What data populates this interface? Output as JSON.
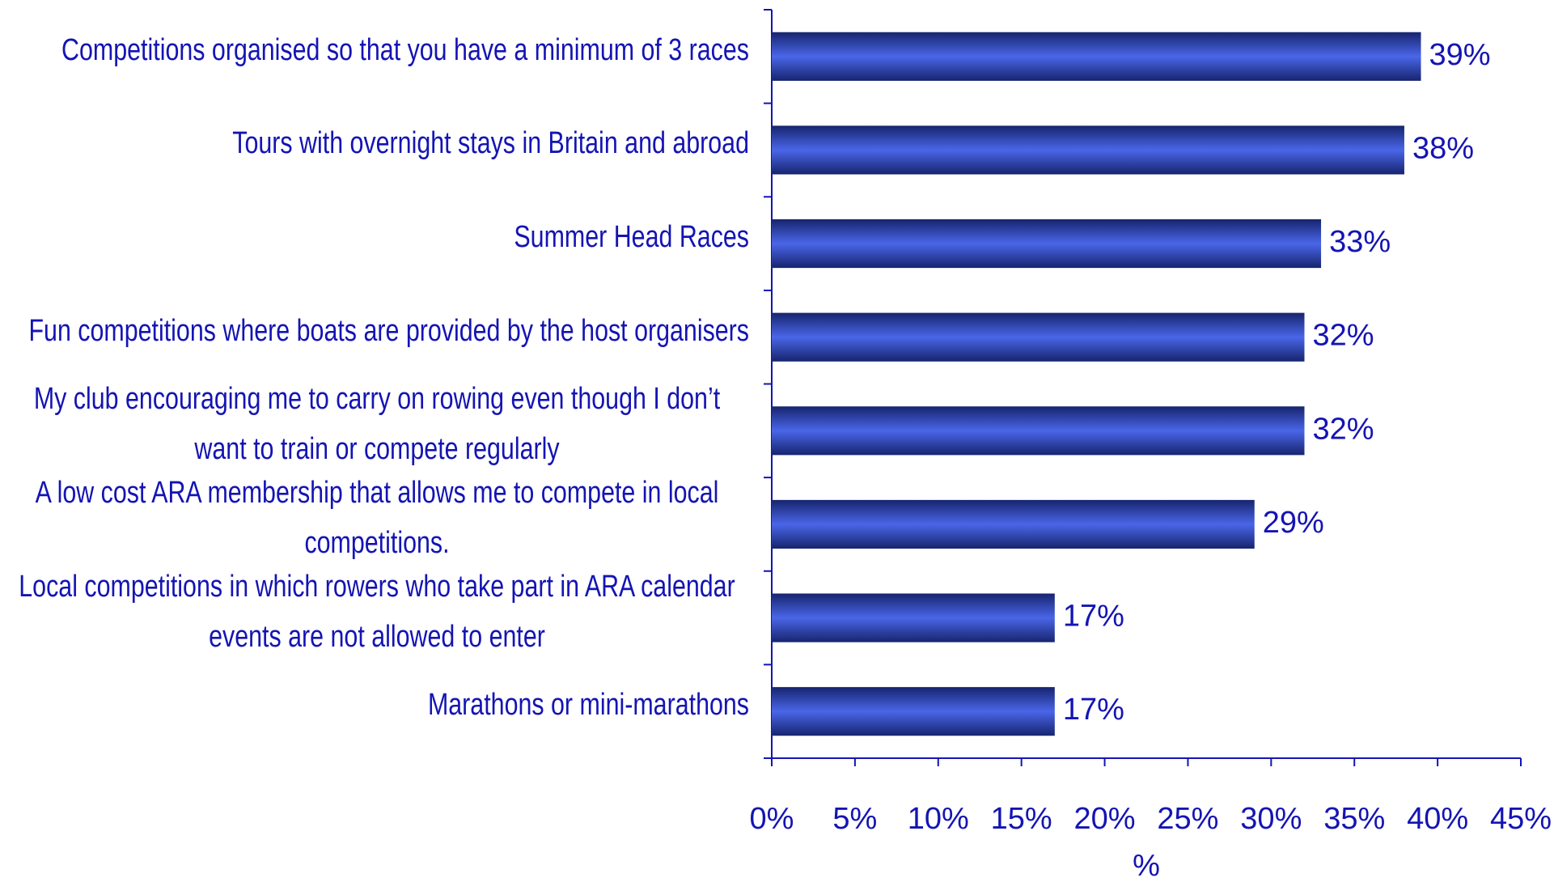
{
  "chart_data": {
    "type": "bar",
    "orientation": "horizontal",
    "categories": [
      "Competitions organised so that you have a minimum of 3 races",
      "Tours with overnight stays in Britain and abroad",
      "Summer Head Races",
      "Fun competitions where boats are provided by the host organisers",
      "My club encouraging me to carry on rowing even though I don’t want to train or compete regularly",
      "A low cost ARA membership that allows me to compete in local competitions.",
      "Local competitions in which rowers who take part in ARA calendar events are not allowed to enter",
      "Marathons or mini-marathons"
    ],
    "values": [
      39,
      38,
      33,
      32,
      32,
      29,
      17,
      17
    ],
    "value_labels": [
      "39%",
      "38%",
      "33%",
      "32%",
      "32%",
      "29%",
      "17%",
      "17%"
    ],
    "color": "#2a3fc0",
    "xlabel": "%",
    "xlim": [
      0,
      45
    ],
    "xticks": [
      {
        "value": 0,
        "label": "0%"
      },
      {
        "value": 5,
        "label": "5%"
      },
      {
        "value": 10,
        "label": "10%"
      },
      {
        "value": 15,
        "label": "15%"
      },
      {
        "value": 20,
        "label": "20%"
      },
      {
        "value": 25,
        "label": "25%"
      },
      {
        "value": 30,
        "label": "30%"
      },
      {
        "value": 35,
        "label": "35%"
      },
      {
        "value": 40,
        "label": "40%"
      },
      {
        "value": 45,
        "label": "45%"
      }
    ],
    "grid": false
  }
}
